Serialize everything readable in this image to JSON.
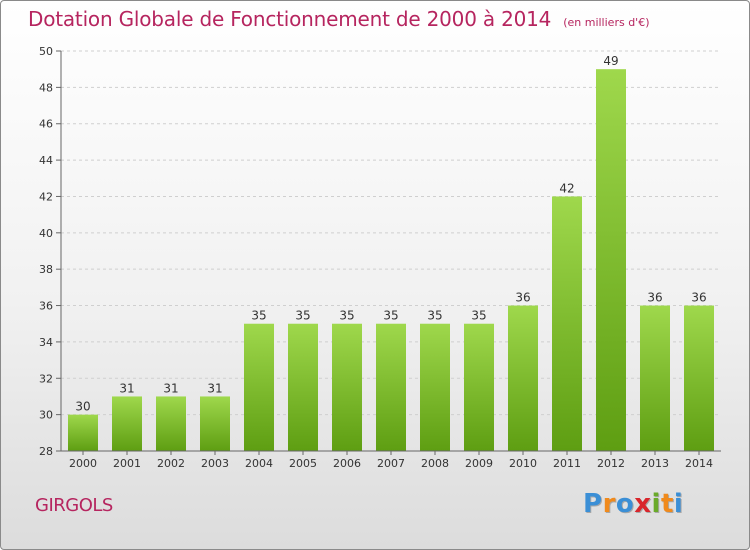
{
  "header": {
    "title": "Dotation Globale de Fonctionnement de 2000 à 2014",
    "unit_note": "(en milliers d'€)"
  },
  "footer": {
    "commune": "GIRGOLS",
    "logo_text": "Proxiti",
    "logo_letters": [
      "P",
      "r",
      "o",
      "x",
      "i",
      "t",
      "i"
    ],
    "logo_colors": [
      "#3b8fd6",
      "#f08a1c",
      "#3b8fd6",
      "#d9262c",
      "#6aaa2a",
      "#f08a1c",
      "#3b8fd6"
    ]
  },
  "colors": {
    "bar_top": "#9fd84c",
    "bar_bottom": "#5e9e12",
    "title": "#b6255f",
    "axis": "#666666",
    "grid": "#cfcfcf",
    "label": "#333333"
  },
  "chart_data": {
    "type": "bar",
    "title": "Dotation Globale de Fonctionnement de 2000 à 2014",
    "subtitle": "(en milliers d'€)",
    "xlabel": "",
    "ylabel": "",
    "categories": [
      "2000",
      "2001",
      "2002",
      "2003",
      "2004",
      "2005",
      "2006",
      "2007",
      "2008",
      "2009",
      "2010",
      "2011",
      "2012",
      "2013",
      "2014"
    ],
    "values": [
      30,
      31,
      31,
      31,
      35,
      35,
      35,
      35,
      35,
      35,
      36,
      42,
      49,
      36,
      36
    ],
    "ylim": [
      28,
      50
    ],
    "yticks": [
      28,
      30,
      32,
      34,
      36,
      38,
      40,
      42,
      44,
      46,
      48,
      50
    ],
    "grid": true,
    "data_labels": true
  }
}
